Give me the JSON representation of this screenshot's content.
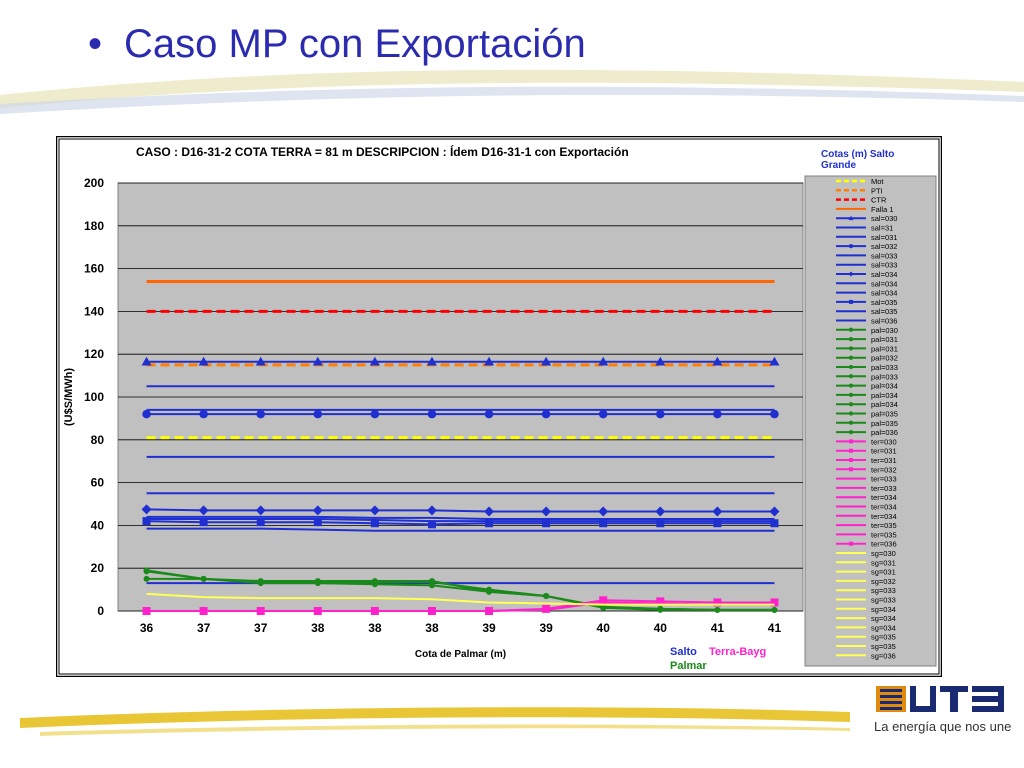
{
  "slide": {
    "bullet": "•",
    "title": "Caso MP con Exportación",
    "tagline": "La energía que nos une",
    "logo_text": "UTE",
    "title_color": "#2b2bb0"
  },
  "chart_data": {
    "type": "line",
    "title": "CASO : D16-31-2 COTA TERRA = 81 m   DESCRIPCION :     Ídem D16-31-1 con Exportación",
    "xlabel": "Cota de Palmar (m)",
    "ylabel": "(U$S/MWh)",
    "categories": [
      "36",
      "37",
      "37",
      "38",
      "38",
      "38",
      "39",
      "39",
      "40",
      "40",
      "41",
      "41"
    ],
    "ylim": [
      0,
      200
    ],
    "yticks": [
      "0",
      "20",
      "40",
      "60",
      "80",
      "100",
      "120",
      "140",
      "160",
      "180",
      "200"
    ],
    "grid": true,
    "legend_placement": "right",
    "legend_title_line1": "Cotas (m) Salto",
    "legend_title_line2": "Grande",
    "group_labels": {
      "salto": "Salto",
      "terra": "Terra-Bayg",
      "palmar": "Palmar"
    },
    "colors": {
      "plot_bg": "#c0c0c0",
      "legend_bg": "#c0c0c0",
      "mot": "#ffff00",
      "pti": "#ff8000",
      "ctr": "#ff0000",
      "falla": "#ff6600",
      "salto": "#1f2fd0",
      "palmar": "#1a8a1a",
      "terra": "#ff22cc",
      "sg": "#ffff55"
    },
    "series": [
      {
        "name": "Mot",
        "group": "mot",
        "dash": true,
        "marker": "none",
        "values": [
          81,
          81,
          81,
          81,
          81,
          81,
          81,
          81,
          81,
          81,
          81,
          81
        ]
      },
      {
        "name": "PTI",
        "group": "pti",
        "dash": true,
        "marker": "none",
        "values": [
          115,
          115,
          115,
          115,
          115,
          115,
          115,
          115,
          115,
          115,
          115,
          115
        ]
      },
      {
        "name": "CTR",
        "group": "ctr",
        "dash": true,
        "marker": "none",
        "values": [
          140,
          140,
          140,
          140,
          140,
          140,
          140,
          140,
          140,
          140,
          140,
          140
        ]
      },
      {
        "name": "Falla 1",
        "group": "falla",
        "dash": false,
        "marker": "none",
        "values": [
          154,
          154,
          154,
          154,
          154,
          154,
          154,
          154,
          154,
          154,
          154,
          154
        ]
      },
      {
        "name": "sal=030",
        "group": "salto",
        "dash": false,
        "marker": "triangle",
        "values": [
          116.5,
          116.5,
          116.5,
          116.5,
          116.5,
          116.5,
          116.5,
          116.5,
          116.5,
          116.5,
          116.5,
          116.5
        ]
      },
      {
        "name": "sal=31",
        "group": "salto",
        "dash": false,
        "marker": "none",
        "values": [
          105,
          105,
          105,
          105,
          105,
          105,
          105,
          105,
          105,
          105,
          105,
          105
        ]
      },
      {
        "name": "sal=031",
        "group": "salto",
        "dash": false,
        "marker": "none",
        "values": [
          94,
          94,
          94,
          94,
          94,
          94,
          94,
          94,
          94,
          94,
          94,
          94
        ]
      },
      {
        "name": "sal=032",
        "group": "salto",
        "dash": false,
        "marker": "circle",
        "values": [
          92,
          92,
          92,
          92,
          92,
          92,
          92,
          92,
          92,
          92,
          92,
          92
        ]
      },
      {
        "name": "sal=033",
        "group": "salto",
        "dash": false,
        "marker": "none",
        "values": [
          72,
          72,
          72,
          72,
          72,
          72,
          72,
          72,
          72,
          72,
          72,
          72
        ]
      },
      {
        "name": "sal=033",
        "group": "salto",
        "dash": false,
        "marker": "none",
        "values": [
          55,
          55,
          55,
          55,
          55,
          55,
          55,
          55,
          55,
          55,
          55,
          55
        ]
      },
      {
        "name": "sal=034",
        "group": "salto",
        "dash": false,
        "marker": "diamond",
        "values": [
          47.5,
          47,
          47,
          47,
          47,
          47,
          46.5,
          46.5,
          46.5,
          46.5,
          46.5,
          46.5
        ]
      },
      {
        "name": "sal=034",
        "group": "salto",
        "dash": false,
        "marker": "none",
        "values": [
          44,
          44,
          44,
          44,
          43.5,
          43.5,
          43,
          43,
          43,
          43,
          43,
          43
        ]
      },
      {
        "name": "sal=034",
        "group": "salto",
        "dash": false,
        "marker": "none",
        "values": [
          43,
          43,
          43,
          43,
          42.5,
          42,
          42,
          42,
          42,
          42,
          42,
          42
        ]
      },
      {
        "name": "sal=035",
        "group": "salto",
        "dash": false,
        "marker": "square",
        "values": [
          42,
          41.5,
          41.5,
          41.5,
          41,
          40.5,
          41,
          41,
          41,
          41,
          41,
          41
        ]
      },
      {
        "name": "sal=035",
        "group": "salto",
        "dash": false,
        "marker": "none",
        "values": [
          38.5,
          38.5,
          38.5,
          38,
          37.5,
          37.5,
          37.5,
          37.5,
          37.5,
          37.5,
          37.5,
          37.5
        ]
      },
      {
        "name": "sal=036",
        "group": "salto",
        "dash": false,
        "marker": "none",
        "values": [
          13,
          13,
          13,
          13,
          13,
          13,
          13,
          13,
          13,
          13,
          13,
          13
        ]
      },
      {
        "name": "pal=030",
        "group": "palmar",
        "dash": false,
        "marker": "circle",
        "values": [
          18.5,
          15,
          13.5,
          13.5,
          13.5,
          13.5,
          10,
          7,
          2,
          1,
          0.5,
          0.5
        ]
      },
      {
        "name": "pal=031",
        "group": "palmar",
        "dash": false,
        "marker": "circle",
        "values": [
          15,
          15,
          14,
          14,
          14,
          14,
          9,
          7,
          1.5,
          1,
          0.5,
          0.5
        ]
      },
      {
        "name": "pal=036",
        "group": "palmar",
        "dash": false,
        "marker": "circle",
        "values": [
          19,
          15,
          13,
          13,
          12.5,
          12,
          9,
          7,
          1.5,
          0.5,
          0.5,
          0.5
        ]
      },
      {
        "name": "ter=030",
        "group": "terra",
        "dash": false,
        "marker": "square",
        "values": [
          0,
          0,
          0,
          0,
          0,
          0,
          0,
          1,
          5,
          4.5,
          4,
          4
        ]
      },
      {
        "name": "ter=036",
        "group": "terra",
        "dash": false,
        "marker": "none",
        "values": [
          0,
          0,
          0,
          0,
          0,
          0,
          0,
          0.5,
          4,
          3.5,
          3,
          3
        ]
      },
      {
        "name": "sg=030",
        "group": "sg",
        "dash": false,
        "marker": "none",
        "values": [
          8,
          6.5,
          6,
          6,
          6,
          5.5,
          4,
          3.5,
          3,
          3,
          3,
          3
        ]
      }
    ],
    "legend": [
      {
        "label": "Mot",
        "color": "#ffff00",
        "style": "dash",
        "marker": "none"
      },
      {
        "label": "PTI",
        "color": "#ff8000",
        "style": "dash",
        "marker": "none"
      },
      {
        "label": "CTR",
        "color": "#ff0000",
        "style": "dash",
        "marker": "none"
      },
      {
        "label": "Falla 1",
        "color": "#ff6600",
        "style": "solid",
        "marker": "none"
      },
      {
        "label": "sal=030",
        "color": "#1f2fd0",
        "style": "solid",
        "marker": "triangle"
      },
      {
        "label": "sal=31",
        "color": "#1f2fd0",
        "style": "solid",
        "marker": "none"
      },
      {
        "label": "sal=031",
        "color": "#1f2fd0",
        "style": "solid",
        "marker": "none"
      },
      {
        "label": "sal=032",
        "color": "#1f2fd0",
        "style": "solid",
        "marker": "circle"
      },
      {
        "label": "sal=033",
        "color": "#1f2fd0",
        "style": "solid",
        "marker": "none"
      },
      {
        "label": "sal=033",
        "color": "#1f2fd0",
        "style": "solid",
        "marker": "none"
      },
      {
        "label": "sal=034",
        "color": "#1f2fd0",
        "style": "solid",
        "marker": "diamond"
      },
      {
        "label": "sal=034",
        "color": "#1f2fd0",
        "style": "solid",
        "marker": "none"
      },
      {
        "label": "sal=034",
        "color": "#1f2fd0",
        "style": "solid",
        "marker": "none"
      },
      {
        "label": "sal=035",
        "color": "#1f2fd0",
        "style": "solid",
        "marker": "square"
      },
      {
        "label": "sal=035",
        "color": "#1f2fd0",
        "style": "solid",
        "marker": "none"
      },
      {
        "label": "sal=036",
        "color": "#1f2fd0",
        "style": "solid",
        "marker": "none"
      },
      {
        "label": "pal=030",
        "color": "#1a8a1a",
        "style": "solid",
        "marker": "circle"
      },
      {
        "label": "pal=031",
        "color": "#1a8a1a",
        "style": "solid",
        "marker": "circle"
      },
      {
        "label": "pal=031",
        "color": "#1a8a1a",
        "style": "solid",
        "marker": "circle"
      },
      {
        "label": "pal=032",
        "color": "#1a8a1a",
        "style": "solid",
        "marker": "circle"
      },
      {
        "label": "pal=033",
        "color": "#1a8a1a",
        "style": "solid",
        "marker": "circle"
      },
      {
        "label": "pal=033",
        "color": "#1a8a1a",
        "style": "solid",
        "marker": "circle"
      },
      {
        "label": "pal=034",
        "color": "#1a8a1a",
        "style": "solid",
        "marker": "circle"
      },
      {
        "label": "pal=034",
        "color": "#1a8a1a",
        "style": "solid",
        "marker": "circle"
      },
      {
        "label": "pal=034",
        "color": "#1a8a1a",
        "style": "solid",
        "marker": "circle"
      },
      {
        "label": "pal=035",
        "color": "#1a8a1a",
        "style": "solid",
        "marker": "circle"
      },
      {
        "label": "pal=035",
        "color": "#1a8a1a",
        "style": "solid",
        "marker": "circle"
      },
      {
        "label": "pal=036",
        "color": "#1a8a1a",
        "style": "solid",
        "marker": "circle"
      },
      {
        "label": "ter=030",
        "color": "#ff22cc",
        "style": "solid",
        "marker": "square"
      },
      {
        "label": "ter=031",
        "color": "#ff22cc",
        "style": "solid",
        "marker": "square"
      },
      {
        "label": "ter=031",
        "color": "#ff22cc",
        "style": "solid",
        "marker": "square"
      },
      {
        "label": "ter=032",
        "color": "#ff22cc",
        "style": "solid",
        "marker": "square"
      },
      {
        "label": "ter=033",
        "color": "#ff22cc",
        "style": "solid",
        "marker": "none"
      },
      {
        "label": "ter=033",
        "color": "#ff22cc",
        "style": "solid",
        "marker": "none"
      },
      {
        "label": "ter=034",
        "color": "#ff22cc",
        "style": "solid",
        "marker": "none"
      },
      {
        "label": "ter=034",
        "color": "#ff22cc",
        "style": "solid",
        "marker": "none"
      },
      {
        "label": "ter=034",
        "color": "#ff22cc",
        "style": "solid",
        "marker": "none"
      },
      {
        "label": "ter=035",
        "color": "#ff22cc",
        "style": "solid",
        "marker": "none"
      },
      {
        "label": "ter=035",
        "color": "#ff22cc",
        "style": "solid",
        "marker": "none"
      },
      {
        "label": "ter=036",
        "color": "#ff22cc",
        "style": "solid",
        "marker": "square"
      },
      {
        "label": "sg=030",
        "color": "#ffff55",
        "style": "solid",
        "marker": "none"
      },
      {
        "label": "sg=031",
        "color": "#ffff55",
        "style": "solid",
        "marker": "none"
      },
      {
        "label": "sg=031",
        "color": "#ffff55",
        "style": "solid",
        "marker": "none"
      },
      {
        "label": "sg=032",
        "color": "#ffff55",
        "style": "solid",
        "marker": "none"
      },
      {
        "label": "sg=033",
        "color": "#ffff55",
        "style": "solid",
        "marker": "none"
      },
      {
        "label": "sg=033",
        "color": "#ffff55",
        "style": "solid",
        "marker": "none"
      },
      {
        "label": "sg=034",
        "color": "#ffff55",
        "style": "solid",
        "marker": "none"
      },
      {
        "label": "sg=034",
        "color": "#ffff55",
        "style": "solid",
        "marker": "none"
      },
      {
        "label": "sg=034",
        "color": "#ffff55",
        "style": "solid",
        "marker": "none"
      },
      {
        "label": "sg=035",
        "color": "#ffff55",
        "style": "solid",
        "marker": "none"
      },
      {
        "label": "sg=035",
        "color": "#ffff55",
        "style": "solid",
        "marker": "none"
      },
      {
        "label": "sg=036",
        "color": "#ffff55",
        "style": "solid",
        "marker": "none"
      }
    ]
  }
}
